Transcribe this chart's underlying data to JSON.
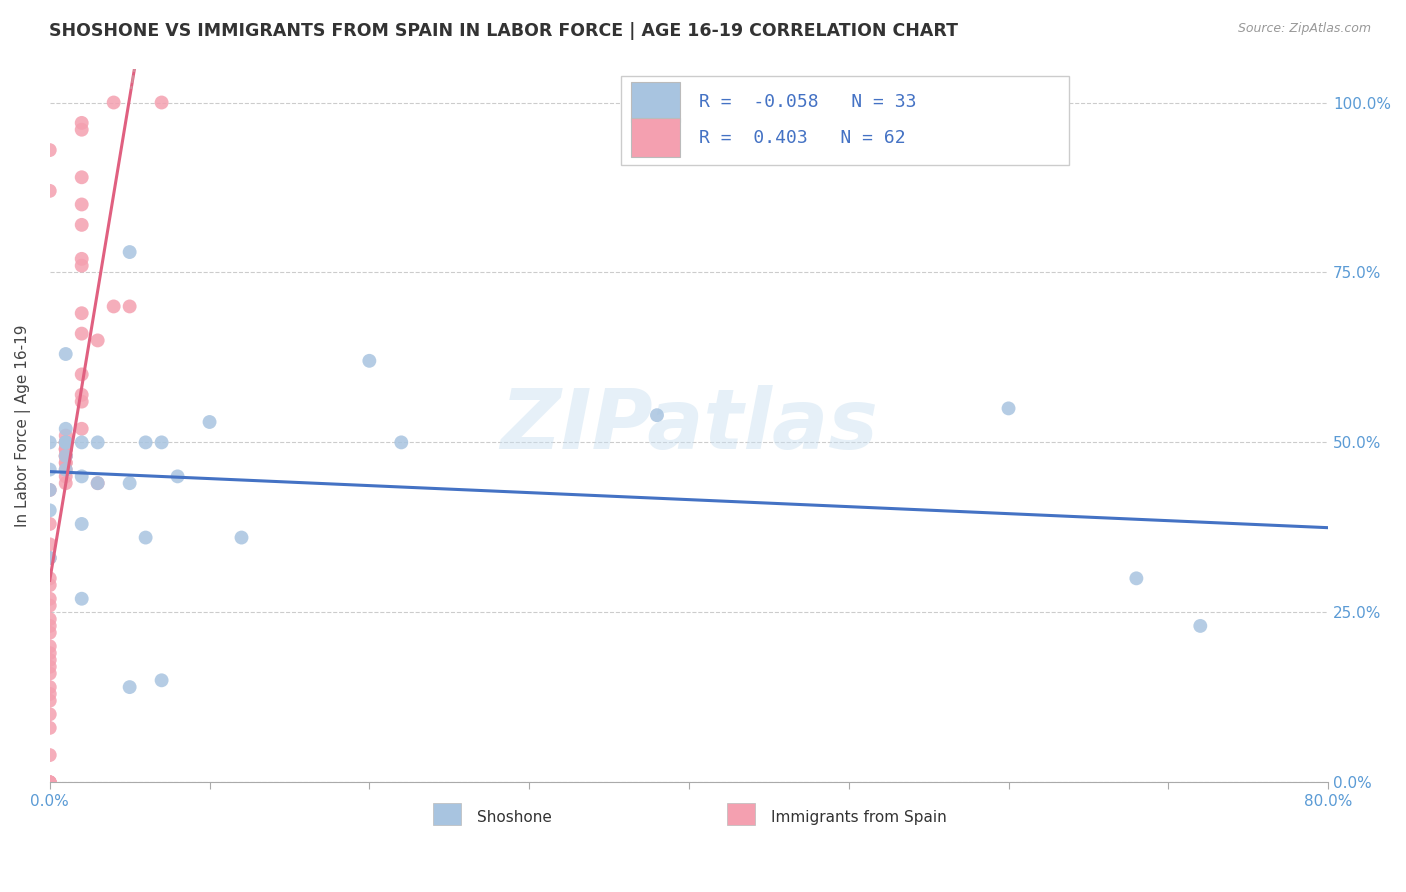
{
  "title": "SHOSHONE VS IMMIGRANTS FROM SPAIN IN LABOR FORCE | AGE 16-19 CORRELATION CHART",
  "source": "Source: ZipAtlas.com",
  "ylabel": "In Labor Force | Age 16-19",
  "xlim": [
    0.0,
    0.8
  ],
  "ylim": [
    0.0,
    1.05
  ],
  "x_ticks": [
    0.0,
    0.1,
    0.2,
    0.3,
    0.4,
    0.5,
    0.6,
    0.7,
    0.8
  ],
  "x_tick_labels": [
    "0.0%",
    "",
    "",
    "",
    "",
    "",
    "",
    "",
    "80.0%"
  ],
  "y_ticks": [
    0.0,
    0.25,
    0.5,
    0.75,
    1.0
  ],
  "y_tick_labels_right": [
    "0.0%",
    "25.0%",
    "50.0%",
    "75.0%",
    "100.0%"
  ],
  "shoshone_color": "#a8c4e0",
  "immigrants_color": "#f4a0b0",
  "shoshone_line_color": "#4472c4",
  "immigrants_line_color": "#e06080",
  "R_shoshone": -0.058,
  "N_shoshone": 33,
  "R_immigrants": 0.403,
  "N_immigrants": 62,
  "watermark": "ZIPatlas",
  "shoshone_x": [
    0.0,
    0.0,
    0.0,
    0.0,
    0.0,
    0.01,
    0.01,
    0.01,
    0.01,
    0.01,
    0.01,
    0.02,
    0.02,
    0.02,
    0.02,
    0.03,
    0.03,
    0.05,
    0.05,
    0.05,
    0.06,
    0.06,
    0.07,
    0.07,
    0.08,
    0.1,
    0.12,
    0.2,
    0.22,
    0.38,
    0.6,
    0.68,
    0.72
  ],
  "shoshone_y": [
    0.33,
    0.4,
    0.43,
    0.46,
    0.5,
    0.46,
    0.48,
    0.5,
    0.5,
    0.52,
    0.63,
    0.27,
    0.38,
    0.45,
    0.5,
    0.44,
    0.5,
    0.14,
    0.44,
    0.78,
    0.36,
    0.5,
    0.15,
    0.5,
    0.45,
    0.53,
    0.36,
    0.62,
    0.5,
    0.54,
    0.55,
    0.3,
    0.23
  ],
  "immigrants_x": [
    0.0,
    0.0,
    0.0,
    0.0,
    0.0,
    0.0,
    0.0,
    0.0,
    0.0,
    0.0,
    0.0,
    0.0,
    0.0,
    0.0,
    0.0,
    0.0,
    0.0,
    0.0,
    0.0,
    0.0,
    0.0,
    0.0,
    0.0,
    0.0,
    0.0,
    0.0,
    0.0,
    0.0,
    0.01,
    0.01,
    0.01,
    0.01,
    0.01,
    0.01,
    0.01,
    0.01,
    0.01,
    0.01,
    0.01,
    0.01,
    0.01,
    0.01,
    0.01,
    0.02,
    0.02,
    0.02,
    0.02,
    0.02,
    0.02,
    0.02,
    0.02,
    0.02,
    0.02,
    0.02,
    0.02,
    0.02,
    0.03,
    0.03,
    0.04,
    0.04,
    0.05,
    0.07
  ],
  "immigrants_y": [
    0.0,
    0.0,
    0.0,
    0.0,
    0.04,
    0.08,
    0.1,
    0.12,
    0.13,
    0.14,
    0.16,
    0.17,
    0.18,
    0.19,
    0.2,
    0.22,
    0.23,
    0.24,
    0.26,
    0.27,
    0.29,
    0.3,
    0.33,
    0.35,
    0.38,
    0.43,
    0.87,
    0.93,
    0.44,
    0.45,
    0.46,
    0.47,
    0.47,
    0.48,
    0.48,
    0.48,
    0.49,
    0.49,
    0.49,
    0.5,
    0.5,
    0.5,
    0.51,
    0.52,
    0.56,
    0.57,
    0.6,
    0.66,
    0.69,
    0.76,
    0.77,
    0.82,
    0.85,
    0.89,
    0.96,
    0.97,
    0.44,
    0.65,
    0.7,
    1.0,
    0.7,
    1.0
  ],
  "background_color": "#ffffff",
  "grid_color": "#cccccc",
  "legend_R_text_color": "#4472c4",
  "legend_N_text_color": "#4472c4"
}
